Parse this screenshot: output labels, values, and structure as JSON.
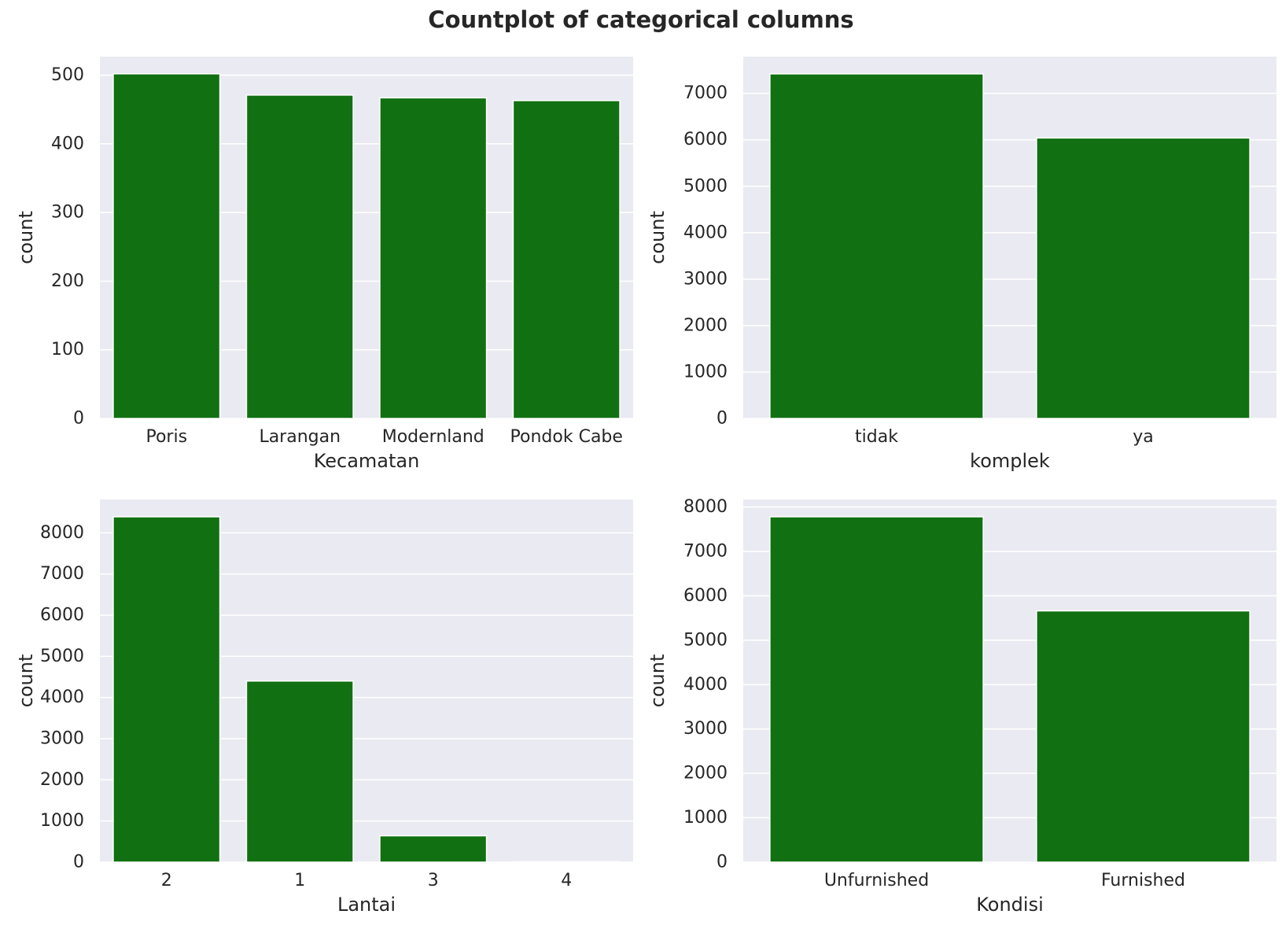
{
  "figure": {
    "title": "Countplot of categorical columns"
  },
  "colors": {
    "bar": "#117011",
    "plot_background": "#EAEAF2",
    "grid": "#FFFFFF",
    "text": "#262626"
  },
  "chart_data": [
    {
      "type": "bar",
      "categories": [
        "Poris",
        "Larangan",
        "Modernland",
        "Pondok Cabe"
      ],
      "values": [
        502,
        471,
        467,
        463
      ],
      "xlabel": "Kecamatan",
      "ylabel": "count",
      "ylim": [
        0,
        527
      ],
      "yticks": [
        0,
        100,
        200,
        300,
        400,
        500
      ],
      "grid": true
    },
    {
      "type": "bar",
      "categories": [
        "tidak",
        "ya"
      ],
      "values": [
        7420,
        6040
      ],
      "xlabel": "komplek",
      "ylabel": "count",
      "ylim": [
        0,
        7791
      ],
      "yticks": [
        0,
        1000,
        2000,
        3000,
        4000,
        5000,
        6000,
        7000
      ],
      "grid": true
    },
    {
      "type": "bar",
      "categories": [
        "2",
        "1",
        "3",
        "4"
      ],
      "values": [
        8390,
        4400,
        640,
        10
      ],
      "xlabel": "Lantai",
      "ylabel": "count",
      "ylim": [
        0,
        8810
      ],
      "yticks": [
        0,
        1000,
        2000,
        3000,
        4000,
        5000,
        6000,
        7000,
        8000
      ],
      "grid": true
    },
    {
      "type": "bar",
      "categories": [
        "Unfurnished",
        "Furnished"
      ],
      "values": [
        7780,
        5660
      ],
      "xlabel": "Kondisi",
      "ylabel": "count",
      "ylim": [
        0,
        8169
      ],
      "yticks": [
        0,
        1000,
        2000,
        3000,
        4000,
        5000,
        6000,
        7000,
        8000
      ],
      "grid": true
    }
  ]
}
